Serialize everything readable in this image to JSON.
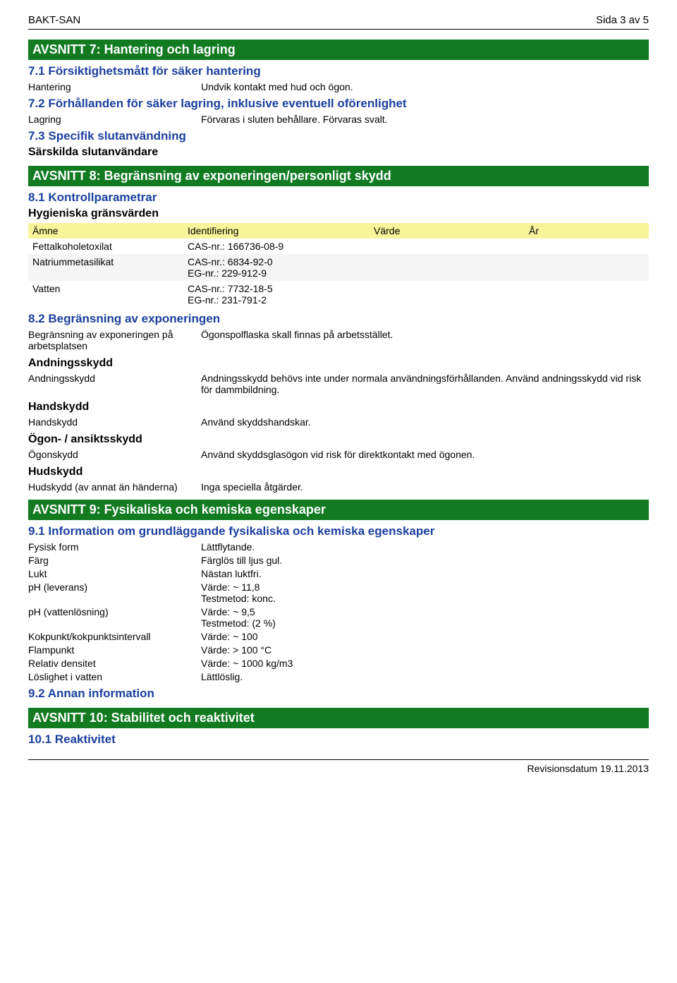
{
  "header": {
    "product": "BAKT-SAN",
    "page": "Sida 3 av 5"
  },
  "section7": {
    "title": "AVSNITT 7: Hantering och lagring",
    "s71": {
      "heading": "7.1 Försiktighetsmått för säker hantering",
      "row1_label": "Hantering",
      "row1_value": "Undvik kontakt med hud och ögon."
    },
    "s72": {
      "heading": "7.2 Förhållanden för säker lagring, inklusive eventuell oförenlighet",
      "row1_label": "Lagring",
      "row1_value": "Förvaras i sluten behållare. Förvaras svalt."
    },
    "s73": {
      "heading": "7.3 Specifik slutanvändning",
      "sub": "Särskilda slutanvändare"
    }
  },
  "section8": {
    "title": "AVSNITT 8: Begränsning av exponeringen/personligt skydd",
    "s81": {
      "heading": "8.1 Kontrollparametrar",
      "hygien": "Hygieniska gränsvärden"
    },
    "table": {
      "headers": {
        "c0": "Ämne",
        "c1": "Identifiering",
        "c2": "Värde",
        "c3": "År"
      },
      "rows": [
        {
          "c0": "Fettalkoholetoxilat",
          "c1": "CAS-nr.: 166736-08-9",
          "c2": "",
          "c3": ""
        },
        {
          "c0": "Natriummetasilikat",
          "c1": "CAS-nr.: 6834-92-0\nEG-nr.: 229-912-9",
          "c2": "",
          "c3": ""
        },
        {
          "c0": "Vatten",
          "c1": "CAS-nr.: 7732-18-5\nEG-nr.: 231-791-2",
          "c2": "",
          "c3": ""
        }
      ]
    },
    "s82": {
      "heading": "8.2 Begränsning av exponeringen",
      "r1_label": "Begränsning av exponeringen på arbetsplatsen",
      "r1_value": "Ögonspolflaska skall finnas på arbetsstället.",
      "andning_h": "Andningsskydd",
      "andning_label": "Andningsskydd",
      "andning_value": "Andningsskydd behövs inte under normala användningsförhållanden. Använd andningsskydd vid risk för dammbildning.",
      "hand_h": "Handskydd",
      "hand_label": "Handskydd",
      "hand_value": "Använd skyddshandskar.",
      "ogon_h": "Ögon- / ansiktsskydd",
      "ogon_label": "Ögonskydd",
      "ogon_value": "Använd skyddsglasögon vid risk för direktkontakt med ögonen.",
      "hud_h": "Hudskydd",
      "hud_label": "Hudskydd (av annat än händerna)",
      "hud_value": "Inga speciella åtgärder."
    }
  },
  "section9": {
    "title": "AVSNITT 9: Fysikaliska och kemiska egenskaper",
    "s91": {
      "heading": "9.1 Information om grundläggande fysikaliska och kemiska egenskaper",
      "rows": [
        {
          "label": "Fysisk form",
          "value": "Lättflytande."
        },
        {
          "label": "Färg",
          "value": "Färglös till ljus gul."
        },
        {
          "label": "Lukt",
          "value": "Nästan luktfri."
        },
        {
          "label": "pH (leverans)",
          "value": "Värde: ~ 11,8\nTestmetod: konc."
        },
        {
          "label": "pH (vattenlösning)",
          "value": "Värde: ~ 9,5\nTestmetod: (2 %)"
        },
        {
          "label": "Kokpunkt/kokpunktsintervall",
          "value": "Värde: ~ 100"
        },
        {
          "label": "Flampunkt",
          "value": "Värde: > 100 °C"
        },
        {
          "label": "Relativ densitet",
          "value": "Värde: ~ 1000 kg/m3"
        },
        {
          "label": "Löslighet i vatten",
          "value": "Lättlöslig."
        }
      ]
    },
    "s92": {
      "heading": "9.2 Annan information"
    }
  },
  "section10": {
    "title": "AVSNITT 10: Stabilitet och reaktivitet",
    "s101": {
      "heading": "10.1 Reaktivitet"
    }
  },
  "footer": {
    "text": "Revisionsdatum 19.11.2013"
  }
}
